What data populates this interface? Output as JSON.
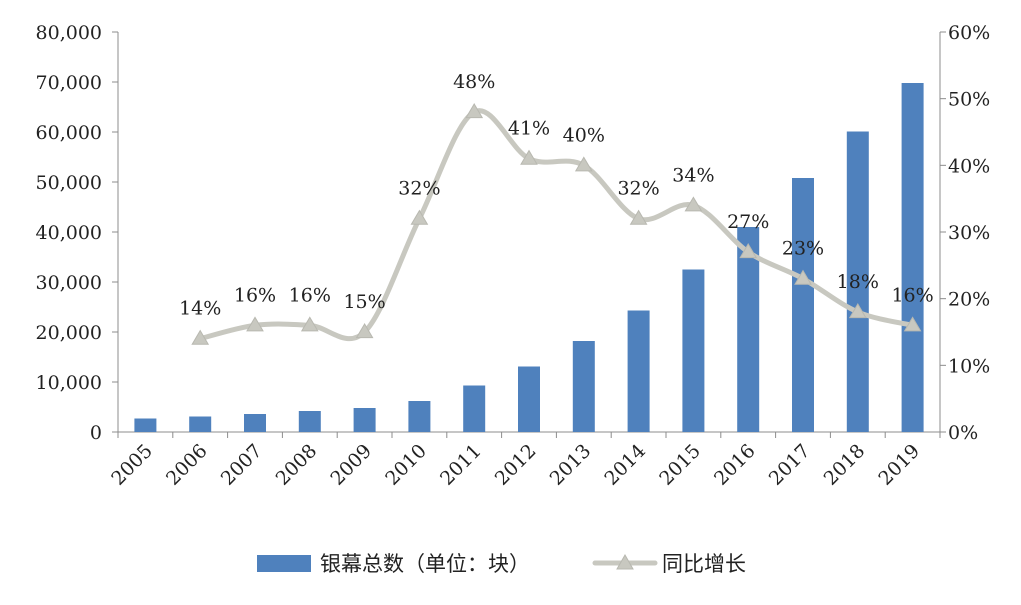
{
  "chart_data": {
    "type": "bar",
    "categories": [
      "2005",
      "2006",
      "2007",
      "2008",
      "2009",
      "2010",
      "2011",
      "2012",
      "2013",
      "2014",
      "2015",
      "2016",
      "2017",
      "2018",
      "2019"
    ],
    "series": [
      {
        "name": "银幕总数（单位：块）",
        "type": "bar",
        "axis": "left",
        "color": "#4F81BD",
        "values": [
          2700,
          3100,
          3600,
          4200,
          4800,
          6200,
          9300,
          13100,
          18200,
          24300,
          32500,
          41000,
          50800,
          60100,
          69800
        ]
      },
      {
        "name": "同比增长",
        "type": "line",
        "axis": "right",
        "color": "#C8C8C0",
        "marker": "triangle",
        "values": [
          null,
          0.14,
          0.16,
          0.16,
          0.15,
          0.32,
          0.48,
          0.41,
          0.4,
          0.32,
          0.34,
          0.27,
          0.23,
          0.18,
          0.16
        ],
        "labels": [
          "",
          "14%",
          "16%",
          "16%",
          "15%",
          "32%",
          "48%",
          "41%",
          "40%",
          "32%",
          "34%",
          "27%",
          "23%",
          "18%",
          "16%"
        ]
      }
    ],
    "y_left": {
      "ylim": [
        0,
        80000
      ],
      "ticks": [
        "0",
        "10,000",
        "20,000",
        "30,000",
        "40,000",
        "50,000",
        "60,000",
        "70,000",
        "80,000"
      ]
    },
    "y_right": {
      "ylim": [
        0,
        0.6
      ],
      "ticks": [
        "0%",
        "10%",
        "20%",
        "30%",
        "40%",
        "50%",
        "60%"
      ]
    },
    "grid": false,
    "legend_position": "bottom"
  }
}
